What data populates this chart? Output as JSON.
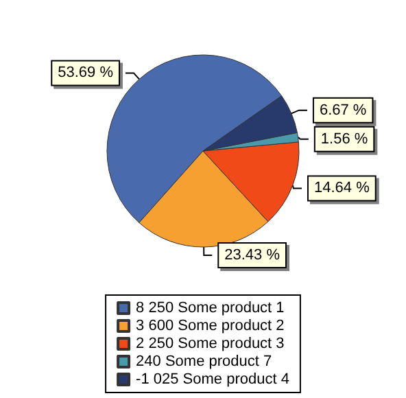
{
  "chart_data": {
    "type": "pie",
    "categories": [
      "8 250 Some product 1",
      "3 600 Some product 2",
      "2 250 Some product 3",
      "240 Some product 7",
      "-1 025 Some product 4"
    ],
    "values": [
      53.69,
      23.43,
      14.64,
      1.56,
      6.67
    ],
    "value_labels": [
      "53.69 %",
      "23.43 %",
      "14.64 %",
      "1.56 %",
      "6.67 %"
    ],
    "colors": [
      "#4a6aae",
      "#f5a030",
      "#f04a18",
      "#4a9aac",
      "#28396b"
    ],
    "legend": "bottom"
  }
}
